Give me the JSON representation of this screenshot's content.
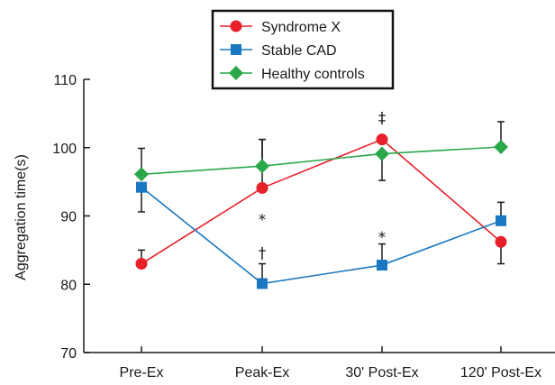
{
  "chart_data": {
    "type": "line",
    "title": "",
    "xlabel": "",
    "ylabel": "Aggregation time(s)",
    "categories": [
      "Pre-Ex",
      "Peak-Ex",
      "30' Post-Ex",
      "120' Post-Ex"
    ],
    "ylim": [
      70,
      110
    ],
    "yticks": [
      70,
      80,
      90,
      100,
      110
    ],
    "grid": false,
    "legend_position": "top",
    "series": [
      {
        "name": "Syndrome X",
        "color": "#e8202a",
        "marker": "circle",
        "values": [
          83,
          94.1,
          101.2,
          86.2
        ],
        "error_upper": [
          85,
          101.2,
          101.2,
          86.2
        ],
        "error_lower": [
          83,
          94.1,
          101.2,
          83
        ]
      },
      {
        "name": "Stable CAD",
        "color": "#1a78c2",
        "marker": "square",
        "values": [
          94.2,
          80.1,
          82.8,
          89.3
        ],
        "error_upper": [
          94.2,
          83,
          85.9,
          92
        ],
        "error_lower": [
          90.6,
          80.1,
          82.8,
          89.3
        ]
      },
      {
        "name": "Healthy controls",
        "color": "#29a84a",
        "marker": "diamond",
        "values": [
          96.1,
          97.3,
          99.1,
          100.1
        ],
        "error_upper": [
          99.9,
          101.2,
          99.1,
          103.8
        ],
        "error_lower": [
          96.1,
          97.3,
          95.2,
          100.1
        ]
      }
    ],
    "annotations": [
      {
        "text": "*",
        "category": 1,
        "y": 89.5
      },
      {
        "text": "†",
        "category": 1,
        "y": 84.6
      },
      {
        "text": "*",
        "category": 2,
        "y": 86.9
      },
      {
        "text": "‡",
        "category": 2,
        "y": 104.4
      }
    ]
  }
}
